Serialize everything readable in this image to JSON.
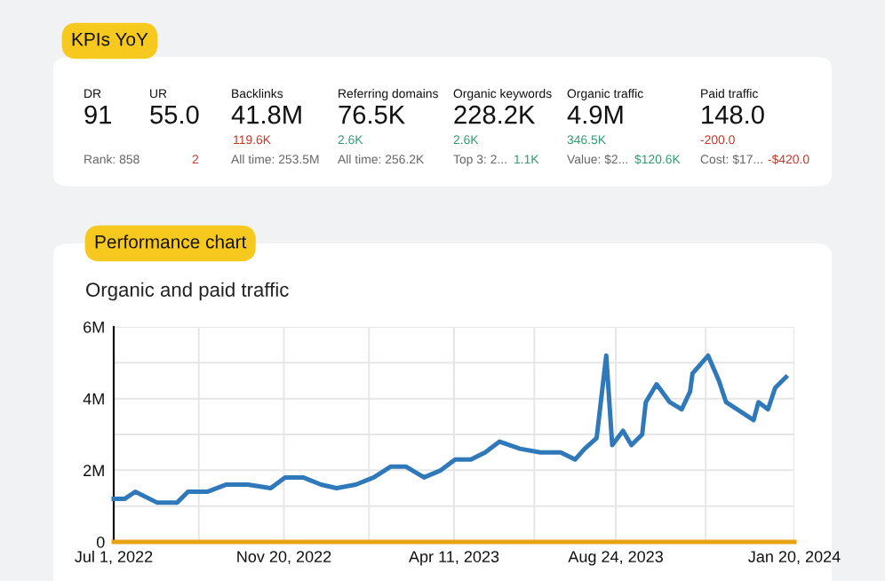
{
  "chart_data": [
    {
      "type": "other",
      "title": "KPIs YoY",
      "annotations": [
        "DR",
        "91",
        "UR",
        "55.0",
        "Rank: 858",
        "2",
        "Backlinks",
        "41.8M",
        "119.6K",
        "All time: 253.5M",
        "Referring domains",
        "76.5K",
        "2.6K",
        "All time: 256.2K",
        "Organic keywords",
        "228.2K",
        "2.6K",
        "Top 3: 2...",
        "1.1K",
        "Organic traffic",
        "4.9M",
        "346.5K",
        "Value: $2...",
        "$120.6K",
        "Paid traffic",
        "148.0",
        "-200.0",
        "Cost: $17...",
        "-$420.0"
      ]
    },
    {
      "type": "line",
      "title": "Performance chart",
      "subtitle": "Organic and paid traffic",
      "series": [
        {
          "color": "#2f78b9",
          "x": [
            "2022-07-01",
            "2022-07-10",
            "2022-07-19",
            "2022-08-06",
            "2022-08-23",
            "2022-09-01",
            "2022-09-17",
            "2022-10-03",
            "2022-10-21",
            "2022-11-09",
            "2022-11-21",
            "2022-12-06",
            "2022-12-21",
            "2023-01-03",
            "2023-01-19",
            "2023-02-03",
            "2023-02-17",
            "2023-03-02",
            "2023-03-17",
            "2023-03-31",
            "2023-04-12",
            "2023-04-25",
            "2023-05-07",
            "2023-05-19",
            "2023-06-05",
            "2023-06-22",
            "2023-07-09",
            "2023-07-21",
            "2023-07-29",
            "2023-08-08",
            "2023-08-16",
            "2023-08-21",
            "2023-08-30",
            "2023-09-06",
            "2023-09-15",
            "2023-09-18",
            "2023-09-27",
            "2023-10-08",
            "2023-10-18",
            "2023-10-25",
            "2023-10-27",
            "2023-11-09",
            "2023-11-18",
            "2023-11-24",
            "2023-12-17",
            "2023-12-21",
            "2023-12-29",
            "2024-01-04",
            "2024-01-13"
          ],
          "values": [
            1.2,
            1.2,
            1.4,
            1.1,
            1.1,
            1.4,
            1.4,
            1.6,
            1.6,
            1.5,
            1.8,
            1.8,
            1.6,
            1.5,
            1.6,
            1.8,
            2.1,
            2.1,
            1.8,
            2.0,
            2.3,
            2.3,
            2.5,
            2.8,
            2.6,
            2.5,
            2.5,
            2.3,
            2.6,
            2.9,
            5.2,
            2.7,
            3.1,
            2.7,
            3.0,
            3.9,
            4.4,
            3.9,
            3.7,
            4.2,
            4.7,
            5.2,
            4.5,
            3.9,
            3.4,
            3.9,
            3.7,
            4.3,
            4.6
          ]
        },
        {
          "color": "#e8a317",
          "x": [
            "2022-07-01",
            "2024-01-20"
          ],
          "values": [
            0,
            0
          ]
        }
      ],
      "xlim": [
        "2022-07-01",
        "2024-01-20"
      ],
      "xticks": [
        {
          "value": "2022-07-01",
          "label": "Jul 1, 2022"
        },
        {
          "value": "2022-09-10",
          "label": null
        },
        {
          "value": "2022-11-20",
          "label": "Nov 20, 2022"
        },
        {
          "value": "2023-01-30",
          "label": null
        },
        {
          "value": "2023-04-11",
          "label": "Apr 11, 2023"
        },
        {
          "value": "2023-06-17",
          "label": null
        },
        {
          "value": "2023-08-24",
          "label": "Aug 24, 2023"
        },
        {
          "value": "2023-11-07",
          "label": null
        },
        {
          "value": "2024-01-20",
          "label": "Jan 20, 2024"
        }
      ],
      "ylim": [
        0,
        6
      ],
      "yticks": [
        {
          "value": 0,
          "label": "0"
        },
        {
          "value": 1,
          "label": null
        },
        {
          "value": 2,
          "label": "2M"
        },
        {
          "value": 3,
          "label": null
        },
        {
          "value": 4,
          "label": "4M"
        },
        {
          "value": 5,
          "label": null
        },
        {
          "value": 6,
          "label": "6M"
        }
      ],
      "grid": true,
      "marker": "none",
      "line_style": "solid"
    }
  ]
}
